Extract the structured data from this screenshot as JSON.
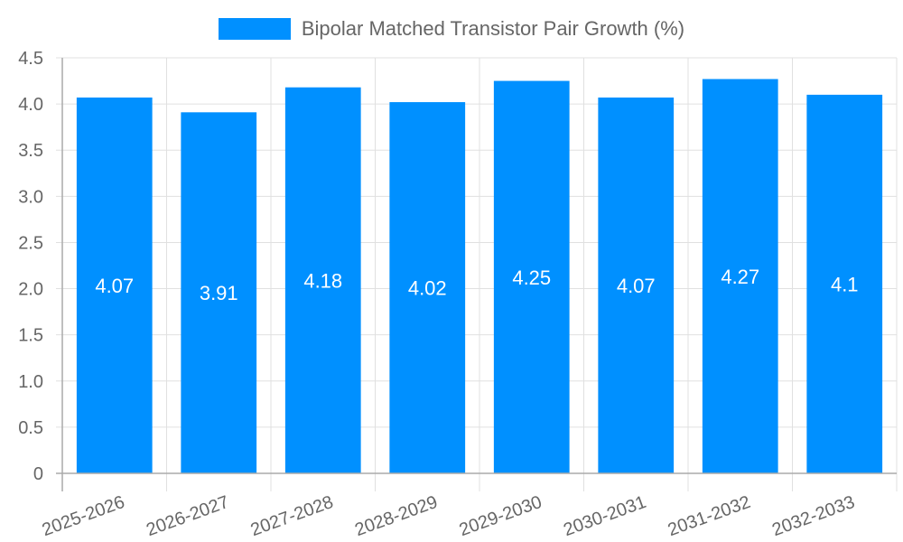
{
  "chart_data": {
    "type": "bar",
    "title": "",
    "legend": [
      {
        "label": "Bipolar Matched Transistor Pair Growth (%)",
        "color": "#0090ff"
      }
    ],
    "legend_position": "top",
    "categories": [
      "2025-2026",
      "2026-2027",
      "2027-2028",
      "2028-2029",
      "2029-2030",
      "2030-2031",
      "2031-2032",
      "2032-2033"
    ],
    "series": [
      {
        "name": "Bipolar Matched Transistor Pair Growth (%)",
        "values": [
          4.07,
          3.91,
          4.18,
          4.02,
          4.25,
          4.07,
          4.27,
          4.1
        ],
        "data_labels": [
          "4.07",
          "3.91",
          "4.18",
          "4.02",
          "4.25",
          "4.07",
          "4.27",
          "4.1"
        ],
        "color": "#0090ff"
      }
    ],
    "xlabel": "",
    "ylabel": "",
    "ylim": [
      0,
      4.5
    ],
    "yticks": [
      "0",
      "0.5",
      "1.0",
      "1.5",
      "2.0",
      "2.5",
      "3.0",
      "3.5",
      "4.0",
      "4.5"
    ],
    "grid": true,
    "x_tick_rotation": -20
  }
}
